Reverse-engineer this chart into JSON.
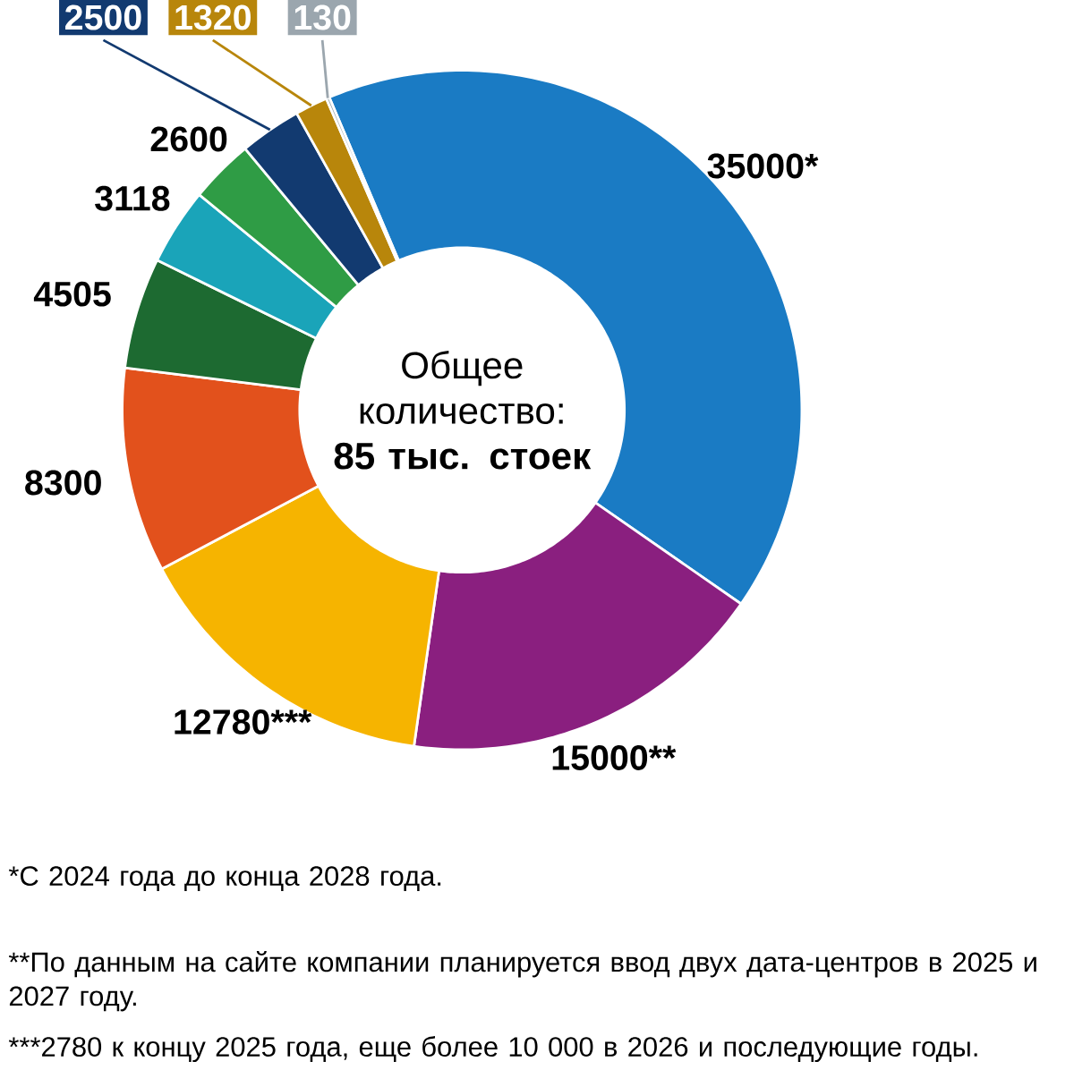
{
  "chart_data": {
    "type": "donut",
    "categories": [
      null,
      null,
      null,
      null,
      null,
      null,
      null,
      null,
      null,
      null
    ],
    "values": [
      35000,
      15000,
      12780,
      8300,
      4505,
      3118,
      2600,
      2500,
      1320,
      130
    ],
    "colors": [
      "#1a7bc4",
      "#8a1f7f",
      "#f6b400",
      "#e2511c",
      "#1d6a31",
      "#1aa4b9",
      "#2f9c45",
      "#123a70",
      "#b8860b",
      "#9ba6ae"
    ],
    "value_labels": [
      "35000*",
      "15000**",
      "12780***",
      "8300",
      "4505",
      "3118",
      "2600",
      "2500",
      "1320",
      "130"
    ],
    "annotations": [
      "Общее количество: **85 тыс. стоек**",
      "*С 2024 года до конца 2028 года.",
      "**По данным на сайте компании планируется ввод двух дата-центров в 2025 и 2027 году.",
      "***2780 к концу 2025 года, еще более 10 000 в 2026 и последующие годы."
    ]
  }
}
